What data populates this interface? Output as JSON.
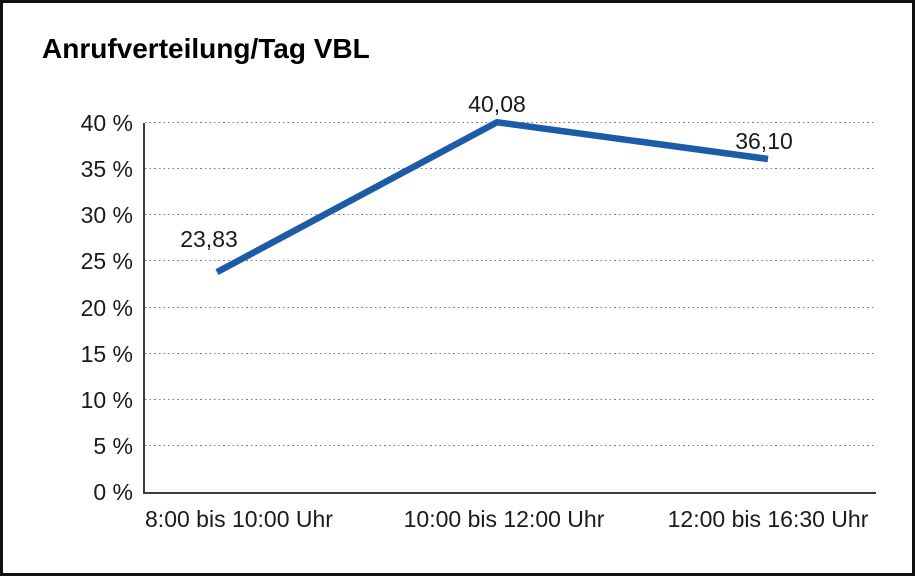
{
  "chart_data": {
    "type": "line",
    "title": "Anrufverteilung/Tag VBL",
    "categories": [
      "8:00 bis 10:00 Uhr",
      "10:00 bis 12:00 Uhr",
      "12:00 bis 16:30 Uhr"
    ],
    "values": [
      23.83,
      40.08,
      36.1
    ],
    "data_labels": [
      "23,83",
      "40,08",
      "36,10"
    ],
    "y_tick_labels": [
      "0 %",
      "5 %",
      "10 %",
      "15 %",
      "20 %",
      "25 %",
      "30 %",
      "35 %",
      "40 %"
    ],
    "ylim": [
      0,
      40
    ],
    "y_tick_step": 5,
    "xlabel": "",
    "ylabel": "",
    "grid": "horizontal-dotted",
    "legend": "none",
    "line_color": "#1c5ba6",
    "frame_color": "#111111",
    "text_color": "#1a1a1a"
  }
}
